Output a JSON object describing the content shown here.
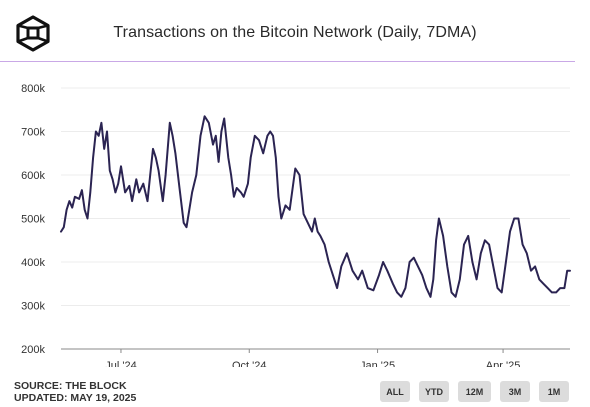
{
  "header": {
    "title": "Transactions on the Bitcoin Network (Daily, 7DMA)"
  },
  "footer": {
    "source": "SOURCE: THE BLOCK",
    "updated": "UPDATED: MAY 19, 2025"
  },
  "range_buttons": [
    "ALL",
    "YTD",
    "12M",
    "3M",
    "1M"
  ],
  "colors": {
    "line": "#2b2452",
    "rule": "#c9a8e6",
    "grid": "#ececec",
    "button": "#dcdcdc"
  },
  "chart_data": {
    "type": "line",
    "title": "Transactions on the Bitcoin Network (Daily, 7DMA)",
    "xlabel": "",
    "ylabel": "",
    "x_range": [
      "2024-05-19",
      "2025-05-19"
    ],
    "ylim": [
      200000,
      800000
    ],
    "y_ticks": [
      200000,
      300000,
      400000,
      500000,
      600000,
      700000,
      800000
    ],
    "y_tick_labels": [
      "200k",
      "300k",
      "400k",
      "500k",
      "600k",
      "700k",
      "800k"
    ],
    "x_ticks": [
      "2024-07-01",
      "2024-10-01",
      "2025-01-01",
      "2025-04-01"
    ],
    "x_tick_labels": [
      "Jul '24",
      "Oct '24",
      "Jan '25",
      "Apr '25"
    ],
    "grid": "horizontal",
    "legend": "none",
    "series": [
      {
        "x": [
          "2024-05-19",
          "2024-05-21",
          "2024-05-23",
          "2024-05-25",
          "2024-05-27",
          "2024-05-29",
          "2024-06-01",
          "2024-06-03",
          "2024-06-05",
          "2024-06-07",
          "2024-06-09",
          "2024-06-11",
          "2024-06-13",
          "2024-06-15",
          "2024-06-17",
          "2024-06-19",
          "2024-06-21",
          "2024-06-23",
          "2024-06-25",
          "2024-06-27",
          "2024-06-29",
          "2024-07-01",
          "2024-07-04",
          "2024-07-07",
          "2024-07-09",
          "2024-07-12",
          "2024-07-14",
          "2024-07-17",
          "2024-07-20",
          "2024-07-22",
          "2024-07-24",
          "2024-07-26",
          "2024-07-28",
          "2024-07-31",
          "2024-08-02",
          "2024-08-05",
          "2024-08-07",
          "2024-08-09",
          "2024-08-12",
          "2024-08-15",
          "2024-08-17",
          "2024-08-19",
          "2024-08-21",
          "2024-08-24",
          "2024-08-27",
          "2024-08-30",
          "2024-09-02",
          "2024-09-05",
          "2024-09-07",
          "2024-09-09",
          "2024-09-11",
          "2024-09-13",
          "2024-09-16",
          "2024-09-18",
          "2024-09-20",
          "2024-09-22",
          "2024-09-25",
          "2024-09-27",
          "2024-09-30",
          "2024-10-02",
          "2024-10-05",
          "2024-10-08",
          "2024-10-11",
          "2024-10-14",
          "2024-10-16",
          "2024-10-18",
          "2024-10-20",
          "2024-10-22",
          "2024-10-24",
          "2024-10-27",
          "2024-10-30",
          "2024-11-03",
          "2024-11-06",
          "2024-11-09",
          "2024-11-12",
          "2024-11-15",
          "2024-11-17",
          "2024-11-19",
          "2024-11-21",
          "2024-11-24",
          "2024-11-27",
          "2024-11-30",
          "2024-12-03",
          "2024-12-06",
          "2024-12-10",
          "2024-12-14",
          "2024-12-18",
          "2024-12-21",
          "2024-12-25",
          "2024-12-29",
          "2025-01-02",
          "2025-01-05",
          "2025-01-08",
          "2025-01-12",
          "2025-01-15",
          "2025-01-18",
          "2025-01-21",
          "2025-01-24",
          "2025-01-27",
          "2025-01-30",
          "2025-02-02",
          "2025-02-05",
          "2025-02-08",
          "2025-02-10",
          "2025-02-12",
          "2025-02-14",
          "2025-02-17",
          "2025-02-20",
          "2025-02-23",
          "2025-02-26",
          "2025-03-01",
          "2025-03-04",
          "2025-03-07",
          "2025-03-10",
          "2025-03-13",
          "2025-03-16",
          "2025-03-19",
          "2025-03-22",
          "2025-03-25",
          "2025-03-28",
          "2025-03-31",
          "2025-04-03",
          "2025-04-06",
          "2025-04-09",
          "2025-04-12",
          "2025-04-15",
          "2025-04-18",
          "2025-04-21",
          "2025-04-24",
          "2025-04-27",
          "2025-04-30",
          "2025-05-03",
          "2025-05-06",
          "2025-05-09",
          "2025-05-12",
          "2025-05-15",
          "2025-05-17",
          "2025-05-19"
        ],
        "values": [
          470000,
          480000,
          520000,
          540000,
          525000,
          550000,
          545000,
          565000,
          520000,
          500000,
          560000,
          640000,
          700000,
          690000,
          720000,
          660000,
          700000,
          610000,
          590000,
          560000,
          580000,
          620000,
          560000,
          575000,
          540000,
          590000,
          560000,
          580000,
          540000,
          600000,
          660000,
          640000,
          610000,
          540000,
          600000,
          720000,
          690000,
          650000,
          570000,
          490000,
          480000,
          520000,
          560000,
          600000,
          690000,
          735000,
          720000,
          670000,
          690000,
          630000,
          700000,
          730000,
          640000,
          600000,
          550000,
          570000,
          560000,
          550000,
          580000,
          640000,
          690000,
          680000,
          650000,
          690000,
          700000,
          690000,
          640000,
          550000,
          500000,
          530000,
          520000,
          615000,
          600000,
          510000,
          490000,
          470000,
          500000,
          470000,
          460000,
          440000,
          400000,
          370000,
          340000,
          390000,
          420000,
          380000,
          360000,
          380000,
          340000,
          335000,
          370000,
          400000,
          380000,
          350000,
          330000,
          320000,
          340000,
          400000,
          410000,
          390000,
          370000,
          340000,
          320000,
          360000,
          450000,
          500000,
          460000,
          390000,
          330000,
          320000,
          360000,
          440000,
          460000,
          400000,
          360000,
          420000,
          450000,
          440000,
          390000,
          340000,
          330000,
          400000,
          470000,
          500000,
          500000,
          440000,
          420000,
          380000,
          390000,
          360000,
          350000,
          340000,
          330000,
          330000,
          340000,
          340000,
          380000,
          380000
        ]
      }
    ]
  }
}
